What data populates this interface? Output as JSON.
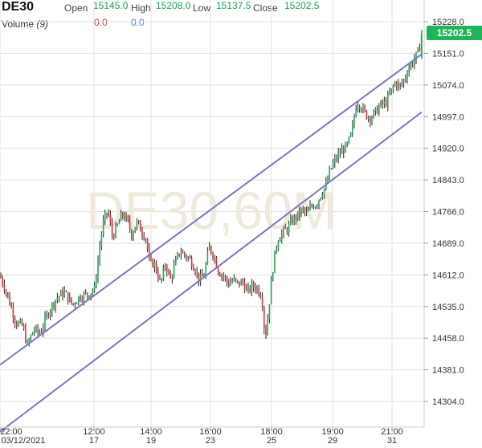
{
  "header": {
    "symbol": "DE30",
    "open_label": "Open",
    "open_value": "15145.0",
    "high_label": "High",
    "high_value": "15208.0",
    "low_label": "Low",
    "low_value": "15137.5",
    "close_label": "Close",
    "close_value": "15202.5",
    "volume_label": "Volume",
    "volume_period": "(9)",
    "volume_value_1": "0.0",
    "volume_value_2": "0.0"
  },
  "colors": {
    "up": "#26a65b",
    "down": "#d9363e",
    "wick": "#222222",
    "channel": "#7b77b8",
    "grid": "#e1e1e1",
    "watermark": "#efe9dc",
    "price_badge": "#21b35a",
    "vol_1": "#d9363e",
    "vol_2": "#3d7fd8"
  },
  "chart_data": {
    "type": "candlestick",
    "title": "DE30",
    "watermark": "DE30,60M",
    "last_price": "15202.5",
    "ylim": [
      14262,
      15246
    ],
    "y_ticks": [
      "15228.0",
      "15151.0",
      "15074.0",
      "14997.0",
      "14920.0",
      "14843.0",
      "14766.0",
      "14689.0",
      "14612.0",
      "14535.0",
      "14458.0",
      "14381.0",
      "14304.0"
    ],
    "x_ticks": [
      {
        "time": "22:00",
        "date": "03/12/2021"
      },
      {
        "time": "12:00",
        "date": "17"
      },
      {
        "time": "14:00",
        "date": "19"
      },
      {
        "time": "16:00",
        "date": "23"
      },
      {
        "time": "18:00",
        "date": "25"
      },
      {
        "time": "19:00",
        "date": "29"
      },
      {
        "time": "21:00",
        "date": "31"
      }
    ],
    "close_path": [
      [
        0,
        14610
      ],
      [
        6,
        14580
      ],
      [
        12,
        14545
      ],
      [
        20,
        14495
      ],
      [
        28,
        14488
      ],
      [
        34,
        14440
      ],
      [
        42,
        14480
      ],
      [
        50,
        14470
      ],
      [
        60,
        14520
      ],
      [
        70,
        14555
      ],
      [
        80,
        14570
      ],
      [
        90,
        14540
      ],
      [
        100,
        14560
      ],
      [
        110,
        14565
      ],
      [
        118,
        14580
      ],
      [
        124,
        14680
      ],
      [
        128,
        14735
      ],
      [
        134,
        14770
      ],
      [
        140,
        14705
      ],
      [
        146,
        14730
      ],
      [
        152,
        14760
      ],
      [
        158,
        14745
      ],
      [
        164,
        14710
      ],
      [
        170,
        14740
      ],
      [
        176,
        14720
      ],
      [
        182,
        14700
      ],
      [
        186,
        14640
      ],
      [
        192,
        14640
      ],
      [
        200,
        14590
      ],
      [
        206,
        14640
      ],
      [
        212,
        14600
      ],
      [
        218,
        14640
      ],
      [
        224,
        14670
      ],
      [
        230,
        14660
      ],
      [
        236,
        14650
      ],
      [
        242,
        14630
      ],
      [
        248,
        14600
      ],
      [
        254,
        14610
      ],
      [
        260,
        14680
      ],
      [
        266,
        14660
      ],
      [
        272,
        14620
      ],
      [
        278,
        14610
      ],
      [
        284,
        14590
      ],
      [
        290,
        14600
      ],
      [
        296,
        14590
      ],
      [
        302,
        14595
      ],
      [
        308,
        14570
      ],
      [
        314,
        14585
      ],
      [
        320,
        14580
      ],
      [
        326,
        14560
      ],
      [
        330,
        14455
      ],
      [
        334,
        14520
      ],
      [
        338,
        14600
      ],
      [
        342,
        14660
      ],
      [
        346,
        14700
      ],
      [
        352,
        14715
      ],
      [
        358,
        14725
      ],
      [
        364,
        14745
      ],
      [
        370,
        14755
      ],
      [
        376,
        14770
      ],
      [
        382,
        14760
      ],
      [
        388,
        14780
      ],
      [
        394,
        14785
      ],
      [
        400,
        14810
      ],
      [
        406,
        14830
      ],
      [
        410,
        14860
      ],
      [
        414,
        14880
      ],
      [
        420,
        14900
      ],
      [
        426,
        14915
      ],
      [
        432,
        14925
      ],
      [
        438,
        14960
      ],
      [
        444,
        15035
      ],
      [
        450,
        15020
      ],
      [
        456,
        15000
      ],
      [
        462,
        14995
      ],
      [
        468,
        15010
      ],
      [
        474,
        15025
      ],
      [
        480,
        15030
      ],
      [
        486,
        15055
      ],
      [
        492,
        15080
      ],
      [
        498,
        15070
      ],
      [
        504,
        15090
      ],
      [
        508,
        15115
      ],
      [
        514,
        15130
      ],
      [
        518,
        15145
      ],
      [
        522,
        15160
      ],
      [
        525,
        15202
      ]
    ],
    "channel_upper": [
      [
        0,
        14393
      ],
      [
        525,
        15149
      ]
    ],
    "channel_lower": [
      [
        0,
        14230
      ],
      [
        525,
        15008
      ]
    ]
  }
}
